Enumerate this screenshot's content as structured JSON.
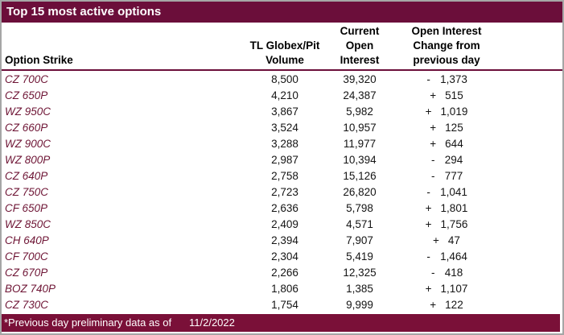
{
  "title": "Top 15 most active options",
  "headers": {
    "option": "Option Strike",
    "volume": [
      "TL Globex/Pit",
      "Volume"
    ],
    "open_interest": [
      "Current",
      "Open",
      "Interest"
    ],
    "change": [
      "Open Interest",
      "Change from",
      "previous day"
    ]
  },
  "rows": [
    {
      "strike": "CZ 700C",
      "volume": "8,500",
      "open_interest": "39,320",
      "sign": "-",
      "change": "1,373"
    },
    {
      "strike": "CZ 650P",
      "volume": "4,210",
      "open_interest": "24,387",
      "sign": "+",
      "change": "515"
    },
    {
      "strike": "WZ 950C",
      "volume": "3,867",
      "open_interest": "5,982",
      "sign": "+",
      "change": "1,019"
    },
    {
      "strike": "CZ 660P",
      "volume": "3,524",
      "open_interest": "10,957",
      "sign": "+",
      "change": "125"
    },
    {
      "strike": "WZ 900C",
      "volume": "3,288",
      "open_interest": "11,977",
      "sign": "+",
      "change": "644"
    },
    {
      "strike": "WZ 800P",
      "volume": "2,987",
      "open_interest": "10,394",
      "sign": "-",
      "change": "294"
    },
    {
      "strike": "CZ 640P",
      "volume": "2,758",
      "open_interest": "15,126",
      "sign": "-",
      "change": "777"
    },
    {
      "strike": "CZ 750C",
      "volume": "2,723",
      "open_interest": "26,820",
      "sign": "-",
      "change": "1,041"
    },
    {
      "strike": "CF 650P",
      "volume": "2,636",
      "open_interest": "5,798",
      "sign": "+",
      "change": "1,801"
    },
    {
      "strike": "WZ 850C",
      "volume": "2,409",
      "open_interest": "4,571",
      "sign": "+",
      "change": "1,756"
    },
    {
      "strike": "CH 640P",
      "volume": "2,394",
      "open_interest": "7,907",
      "sign": "+",
      "change": "47"
    },
    {
      "strike": "CF 700C",
      "volume": "2,304",
      "open_interest": "5,419",
      "sign": "-",
      "change": "1,464"
    },
    {
      "strike": "CZ 670P",
      "volume": "2,266",
      "open_interest": "12,325",
      "sign": "-",
      "change": "418"
    },
    {
      "strike": "BOZ 740P",
      "volume": "1,806",
      "open_interest": "1,385",
      "sign": "+",
      "change": "1,107"
    },
    {
      "strike": "CZ 730C",
      "volume": "1,754",
      "open_interest": "9,999",
      "sign": "+",
      "change": "122"
    }
  ],
  "footer": {
    "note": "*Previous day preliminary data as of",
    "date": "11/2/2022"
  },
  "colors": {
    "title_bar": "#6b0e3a",
    "footer_bar": "#7a1038",
    "header_rule": "#6b0e3a",
    "strike_text": "#6e1535",
    "outer_border": "#a6a6a6"
  }
}
